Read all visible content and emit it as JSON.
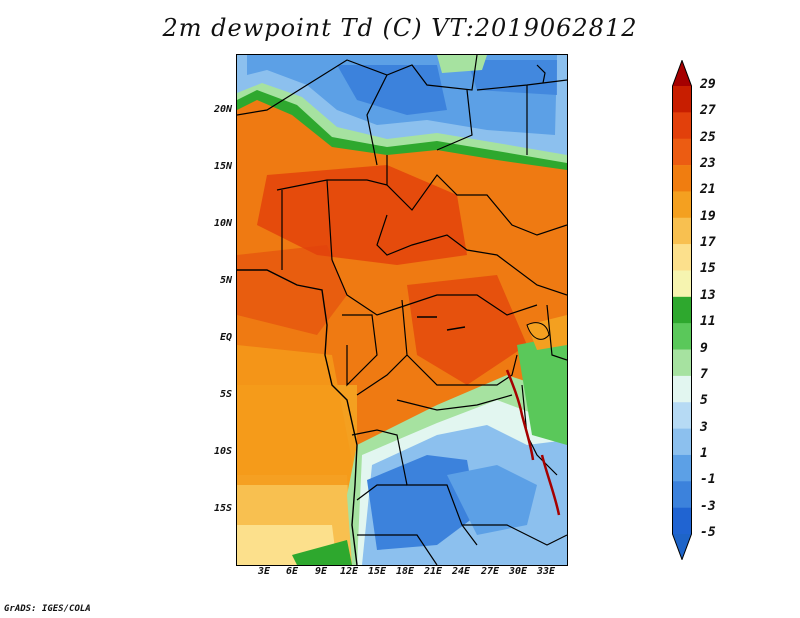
{
  "title": "2m dewpoint Td (C) VT:2019062812",
  "credit": "GrADS: IGES/COLA",
  "lat_labels": [
    "20N",
    "15N",
    "10N",
    "5N",
    "EQ",
    "5S",
    "10S",
    "15S"
  ],
  "lon_labels": [
    "3E",
    "6E",
    "9E",
    "12E",
    "15E",
    "18E",
    "21E",
    "24E",
    "27E",
    "30E",
    "33E"
  ],
  "colorbar": {
    "labels": [
      "29",
      "27",
      "25",
      "23",
      "21",
      "19",
      "17",
      "15",
      "13",
      "11",
      "9",
      "7",
      "5",
      "3",
      "1",
      "-1",
      "-3",
      "-5"
    ],
    "colors": [
      "#a50000",
      "#c81e00",
      "#e2400b",
      "#ec5c12",
      "#f07d10",
      "#f4a020",
      "#f8c050",
      "#fce08c",
      "#f6f4b0",
      "#2ea82e",
      "#5ac85a",
      "#a6e2a0",
      "#e2f6f0",
      "#b6daf4",
      "#8cc0ee",
      "#5ca0e6",
      "#3c82dc",
      "#2064d2",
      "#1e64c8"
    ]
  }
}
